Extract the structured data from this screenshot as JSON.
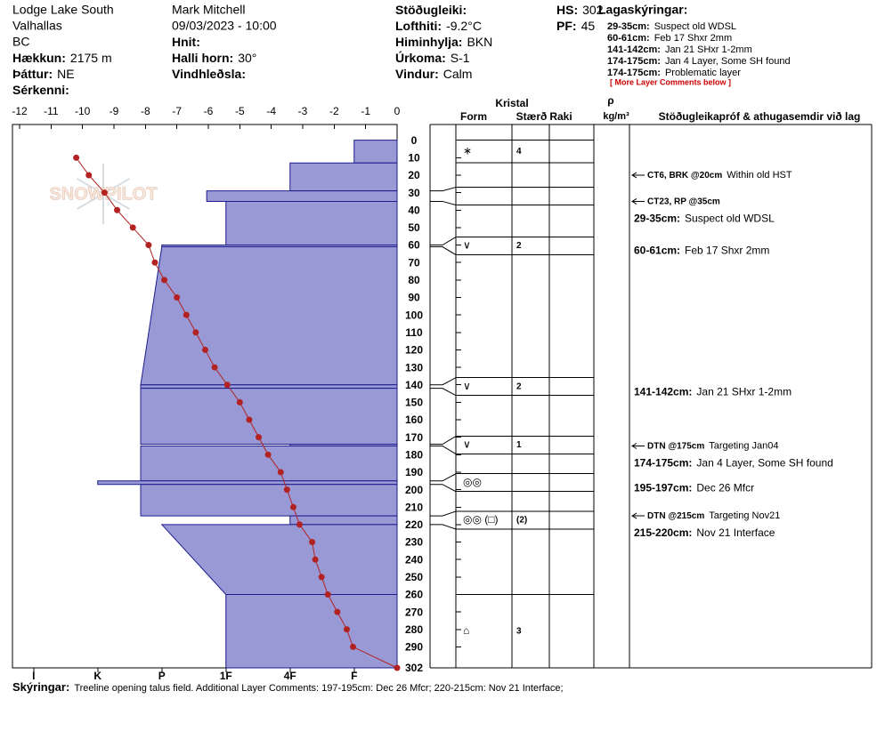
{
  "header": {
    "columns": [
      [
        {
          "text": "Lodge Lake South"
        },
        {
          "text": "Valhallas"
        },
        {
          "text": "BC"
        },
        {
          "label": "Hækkun:",
          "value": "2175 m"
        },
        {
          "label": "Þáttur:",
          "value": "NE"
        },
        {
          "label": "Sérkenni:"
        }
      ],
      [
        {
          "text": "Mark Mitchell"
        },
        {
          "text": "09/03/2023 - 10:00"
        },
        {
          "label": "Hnit:"
        },
        {
          "label": "Halli horn:",
          "value": "30°"
        },
        {
          "label": "Vindhleðsla:"
        }
      ],
      [
        {
          "label": "Stöðugleiki:"
        },
        {
          "label": "Lofthiti:",
          "value": "-9.2°C"
        },
        {
          "label": "Himinhylja:",
          "value": "BKN"
        },
        {
          "label": "Úrkoma:",
          "value": "S-1"
        },
        {
          "label": "Vindur:",
          "value": "Calm"
        }
      ],
      [
        {
          "label": "HS:",
          "value": "302"
        },
        {
          "label": "PF:",
          "value": "45"
        }
      ]
    ],
    "legend_title": "Lagaskýringar:",
    "legend": [
      {
        "label": "29-35cm:",
        "value": "Suspect old WDSL"
      },
      {
        "label": "60-61cm:",
        "value": "Feb 17 Shxr 2mm"
      },
      {
        "label": "141-142cm:",
        "value": "Jan 21 SHxr 1-2mm"
      },
      {
        "label": "174-175cm:",
        "value": "Jan 4 Layer, Some SH found"
      },
      {
        "label": "174-175cm:",
        "value": "Problematic layer"
      }
    ],
    "legend_note": "[ More Layer Comments below ]"
  },
  "table_header": {
    "crystal": "Kristal",
    "form": "Form",
    "size": "Stærð",
    "moisture": "Raki",
    "density_symbol": "ρ",
    "density_unit": "kg/m³",
    "comments": "Stöðugleikapróf & athugasemdir við lag"
  },
  "watermark": "SNOWPILOT",
  "chart_data": {
    "type": "snow-profile",
    "xlim": [
      -12,
      0
    ],
    "xticks": [
      -12,
      -11,
      -10,
      -9,
      -8,
      -7,
      -6,
      -5,
      -4,
      -3,
      -2,
      -1,
      0
    ],
    "ylim": [
      -9,
      302
    ],
    "yticks": [
      0,
      10,
      20,
      30,
      40,
      50,
      60,
      70,
      80,
      90,
      100,
      110,
      120,
      130,
      140,
      150,
      160,
      170,
      180,
      190,
      200,
      210,
      220,
      230,
      240,
      250,
      260,
      270,
      280,
      290,
      302
    ],
    "hardness_lim": [
      0.33,
      6.33
    ],
    "hardness_ticks": [
      {
        "value": 6,
        "label": "I"
      },
      {
        "value": 5,
        "label": "K"
      },
      {
        "value": 4,
        "label": "P"
      },
      {
        "value": 3,
        "label": "1F"
      },
      {
        "value": 2,
        "label": "4F"
      },
      {
        "value": 1,
        "label": "F"
      }
    ],
    "hardness_color": "#9999d6",
    "hardness_edge": "#1c1c8c",
    "temperature": {
      "color": "#b22222",
      "depth": [
        10,
        20,
        30,
        40,
        50,
        60,
        70,
        80,
        90,
        100,
        110,
        120,
        130,
        140,
        150,
        160,
        170,
        180,
        190,
        200,
        210,
        220,
        230,
        240,
        250,
        260,
        270,
        280,
        290,
        302
      ],
      "values": [
        -10.2,
        -9.8,
        -9.3,
        -8.9,
        -8.4,
        -7.9,
        -7.7,
        -7.4,
        -7.0,
        -6.7,
        -6.4,
        -6.1,
        -5.8,
        -5.4,
        -5.0,
        -4.7,
        -4.4,
        -4.1,
        -3.7,
        -3.5,
        -3.3,
        -3.1,
        -2.7,
        -2.6,
        -2.4,
        -2.2,
        -1.9,
        -1.6,
        -1.4,
        0.0
      ]
    },
    "layers": [
      {
        "top": 0,
        "bottom": 13,
        "hardness_top": 1,
        "hardness_bottom": 1,
        "form": "∗",
        "size": "4"
      },
      {
        "top": 13,
        "bottom": 29,
        "hardness_top": 2,
        "hardness_bottom": 2
      },
      {
        "top": 29,
        "bottom": 35,
        "hardness_top": 3.3,
        "hardness_bottom": 3.3
      },
      {
        "top": 35,
        "bottom": 60,
        "hardness_top": 3,
        "hardness_bottom": 3
      },
      {
        "top": 60,
        "bottom": 61,
        "hardness_top": 4,
        "hardness_bottom": 4,
        "form": "∨",
        "size": "2"
      },
      {
        "top": 61,
        "bottom": 140,
        "hardness_top": 4,
        "hardness_bottom": 4.33
      },
      {
        "top": 140,
        "bottom": 142,
        "hardness_top": 4.33,
        "hardness_bottom": 4.33,
        "form": "∨",
        "size": "2"
      },
      {
        "top": 142,
        "bottom": 174,
        "hardness_top": 4.33,
        "hardness_bottom": 4.33
      },
      {
        "top": 174,
        "bottom": 175,
        "hardness_top": 2,
        "hardness_bottom": 2,
        "form": "∨",
        "size": "1"
      },
      {
        "top": 175,
        "bottom": 195,
        "hardness_top": 4.33,
        "hardness_bottom": 4.33
      },
      {
        "top": 195,
        "bottom": 197,
        "hardness_top": 5,
        "hardness_bottom": 5,
        "form": "◎◎"
      },
      {
        "top": 197,
        "bottom": 215,
        "hardness_top": 4.33,
        "hardness_bottom": 4.33
      },
      {
        "top": 215,
        "bottom": 220,
        "hardness_top": 2,
        "hardness_bottom": 2,
        "form": "◎◎ (□)",
        "size": "(2)"
      },
      {
        "top": 220,
        "bottom": 260,
        "hardness_top": 4,
        "hardness_bottom": 3
      },
      {
        "top": 260,
        "bottom": 302,
        "hardness_top": 3,
        "hardness_bottom": 3,
        "form": "⌂",
        "size": "3"
      }
    ]
  },
  "tests": [
    {
      "depth": 20,
      "label": "CT6, BRK @20cm",
      "comment": "Within old HST"
    },
    {
      "depth": 35,
      "label": "CT23, RP @35cm"
    },
    {
      "depth": 175,
      "label": "DTN @175cm",
      "comment": "Targeting Jan04"
    },
    {
      "depth": 215,
      "label": "DTN @215cm",
      "comment": "Targeting Nov21"
    }
  ],
  "layer_comments": [
    {
      "top": 29,
      "bottom": 35,
      "label": "29-35cm:",
      "comment": "Suspect old WDSL"
    },
    {
      "top": 60,
      "bottom": 61,
      "label": "60-61cm:",
      "comment": "Feb 17 Shxr 2mm"
    },
    {
      "top": 141,
      "bottom": 142,
      "label": "141-142cm:",
      "comment": "Jan 21 SHxr 1-2mm"
    },
    {
      "top": 174,
      "bottom": 175,
      "label": "174-175cm:",
      "comment": "Jan 4 Layer, Some SH found"
    },
    {
      "top": 195,
      "bottom": 197,
      "label": "195-197cm:",
      "comment": "Dec 26 Mfcr"
    },
    {
      "top": 215,
      "bottom": 220,
      "label": "215-220cm:",
      "comment": "Nov 21 Interface"
    }
  ],
  "footer": {
    "label": "Skýringar:",
    "text": "Treeline opening talus field. Additional Layer Comments: 197-195cm: Dec 26 Mfcr; 220-215cm: Nov 21 Interface;"
  }
}
